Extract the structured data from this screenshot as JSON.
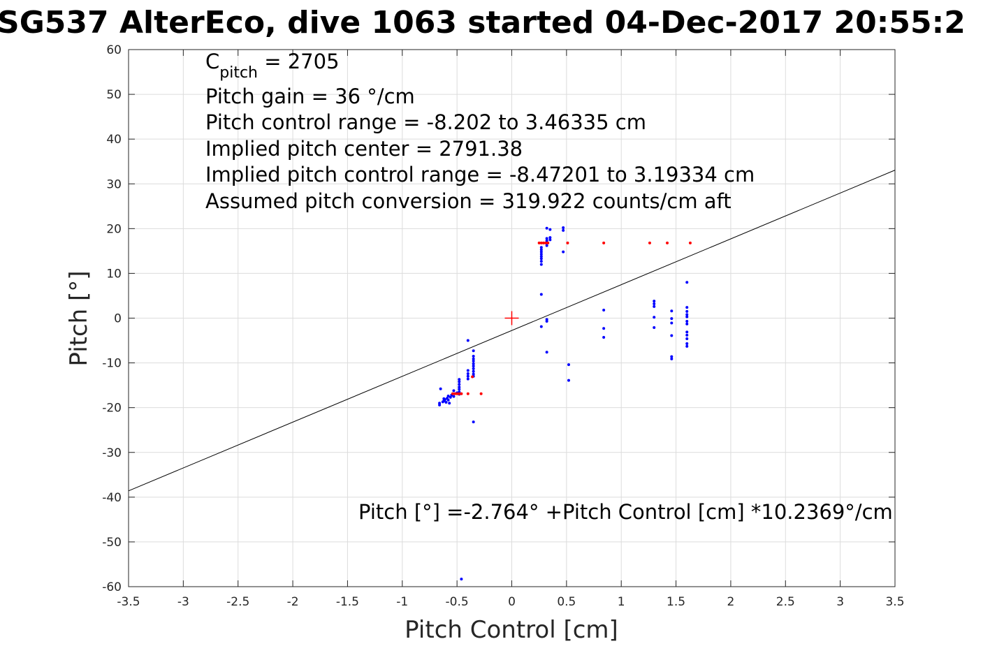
{
  "chart_data": {
    "type": "scatter",
    "title": "SG537 AlterEco, dive 1063 started 04-Dec-2017 20:55:2",
    "xlabel": "Pitch Control [cm]",
    "ylabel": "Pitch [°]",
    "xlim": [
      -3.5,
      3.5
    ],
    "ylim": [
      -60,
      60
    ],
    "xticks": [
      -3.5,
      -3,
      -2.5,
      -2,
      -1.5,
      -1,
      -0.5,
      0,
      0.5,
      1,
      1.5,
      2,
      2.5,
      3,
      3.5
    ],
    "xtick_labels": [
      "-3.5",
      "-3",
      "-2.5",
      "-2",
      "-1.5",
      "-1",
      "-0.5",
      "0",
      "0.5",
      "1",
      "1.5",
      "2",
      "2.5",
      "3",
      "3.5"
    ],
    "yticks": [
      60,
      50,
      40,
      30,
      20,
      10,
      0,
      -10,
      -20,
      -30,
      -40,
      -50,
      -60
    ],
    "ytick_labels": [
      "60",
      "50",
      "40",
      "30",
      "20",
      "10",
      "0",
      "-10",
      "-20",
      "-30",
      "-40",
      "-50",
      "-60"
    ],
    "grid": true,
    "fit_line": {
      "intercept": -2.764,
      "slope": 10.2369,
      "color": "#000000"
    },
    "center_marker": {
      "x": 0,
      "y": 0,
      "color": "#ff0000"
    },
    "annotations": {
      "c_pitch_symbol": "C",
      "c_pitch_subscript": "pitch",
      "c_pitch_value": " = 2705",
      "lines": [
        "Pitch gain = 36 °/cm",
        "Pitch control range = -8.202 to 3.46335 cm",
        "Implied pitch center = 2791.38",
        "Implied pitch control range = -8.47201 to 3.19334 cm",
        "Assumed pitch conversion = 319.922 counts/cm aft"
      ],
      "fit_equation": "Pitch [°] =-2.764° +Pitch Control [cm] *10.2369°/cm"
    },
    "series": [
      {
        "color": "#0000ff",
        "points": [
          [
            -0.65,
            -15.8
          ],
          [
            -0.66,
            -19.0
          ],
          [
            -0.66,
            -19.4
          ],
          [
            -0.63,
            -18.7
          ],
          [
            -0.62,
            -18.0
          ],
          [
            -0.62,
            -18.5
          ],
          [
            -0.61,
            -18.2
          ],
          [
            -0.6,
            -18.8
          ],
          [
            -0.59,
            -17.9
          ],
          [
            -0.58,
            -18.3
          ],
          [
            -0.58,
            -17.4
          ],
          [
            -0.57,
            -19.0
          ],
          [
            -0.56,
            -17.7
          ],
          [
            -0.55,
            -17.2
          ],
          [
            -0.53,
            -16.2
          ],
          [
            -0.53,
            -17.5
          ],
          [
            -0.5,
            -16.7
          ],
          [
            -0.48,
            -17.0
          ],
          [
            -0.48,
            -16.5
          ],
          [
            -0.48,
            -15.9
          ],
          [
            -0.48,
            -15.4
          ],
          [
            -0.48,
            -14.8
          ],
          [
            -0.48,
            -14.2
          ],
          [
            -0.48,
            -13.7
          ],
          [
            -0.46,
            -58.3
          ],
          [
            -0.4,
            -5.0
          ],
          [
            -0.4,
            -11.7
          ],
          [
            -0.4,
            -12.4
          ],
          [
            -0.4,
            -13.0
          ],
          [
            -0.4,
            -13.6
          ],
          [
            -0.35,
            -7.3
          ],
          [
            -0.35,
            -8.5
          ],
          [
            -0.35,
            -9.1
          ],
          [
            -0.35,
            -9.6
          ],
          [
            -0.35,
            -10.2
          ],
          [
            -0.35,
            -10.7
          ],
          [
            -0.35,
            -11.3
          ],
          [
            -0.35,
            -11.9
          ],
          [
            -0.35,
            -12.5
          ],
          [
            -0.35,
            -13.0
          ],
          [
            -0.35,
            -23.2
          ],
          [
            0.27,
            12.0
          ],
          [
            0.27,
            12.7
          ],
          [
            0.27,
            13.3
          ],
          [
            0.27,
            13.8
          ],
          [
            0.27,
            14.3
          ],
          [
            0.27,
            14.8
          ],
          [
            0.27,
            15.3
          ],
          [
            0.27,
            15.8
          ],
          [
            0.27,
            5.3
          ],
          [
            0.27,
            -1.9
          ],
          [
            0.32,
            20.1
          ],
          [
            0.32,
            17.8
          ],
          [
            0.32,
            17.3
          ],
          [
            0.32,
            16.8
          ],
          [
            0.32,
            16.2
          ],
          [
            0.32,
            -0.3
          ],
          [
            0.32,
            -0.7
          ],
          [
            0.32,
            -7.6
          ],
          [
            0.35,
            19.8
          ],
          [
            0.35,
            18.0
          ],
          [
            0.35,
            17.5
          ],
          [
            0.47,
            20.2
          ],
          [
            0.47,
            19.6
          ],
          [
            0.47,
            14.8
          ],
          [
            0.52,
            -10.4
          ],
          [
            0.52,
            -13.9
          ],
          [
            0.84,
            1.8
          ],
          [
            0.84,
            -2.3
          ],
          [
            0.84,
            -4.3
          ],
          [
            1.3,
            3.8
          ],
          [
            1.3,
            3.2
          ],
          [
            1.3,
            2.6
          ],
          [
            1.3,
            0.2
          ],
          [
            1.3,
            -2.1
          ],
          [
            1.46,
            1.6
          ],
          [
            1.46,
            -0.1
          ],
          [
            1.46,
            -1.1
          ],
          [
            1.46,
            -3.9
          ],
          [
            1.46,
            -8.6
          ],
          [
            1.46,
            -9.1
          ],
          [
            1.6,
            8.0
          ],
          [
            1.6,
            2.4
          ],
          [
            1.6,
            1.5
          ],
          [
            1.6,
            0.8
          ],
          [
            1.6,
            0.3
          ],
          [
            1.6,
            -0.7
          ],
          [
            1.6,
            -1.3
          ],
          [
            1.6,
            -3.1
          ],
          [
            1.6,
            -3.8
          ],
          [
            1.6,
            -4.6
          ],
          [
            1.6,
            -5.7
          ],
          [
            1.6,
            -6.3
          ]
        ]
      },
      {
        "color": "#ff0000",
        "points": [
          [
            -0.54,
            -16.9
          ],
          [
            -0.52,
            -16.9
          ],
          [
            -0.5,
            -16.9
          ],
          [
            -0.48,
            -16.9
          ],
          [
            -0.46,
            -16.9
          ],
          [
            -0.4,
            -16.9
          ],
          [
            -0.28,
            -16.9
          ],
          [
            -0.36,
            -13.1
          ],
          [
            0.25,
            16.8
          ],
          [
            0.27,
            16.8
          ],
          [
            0.29,
            16.8
          ],
          [
            0.31,
            16.8
          ],
          [
            0.33,
            16.8
          ],
          [
            0.51,
            16.8
          ],
          [
            0.84,
            16.8
          ],
          [
            1.26,
            16.8
          ],
          [
            1.42,
            16.8
          ],
          [
            1.63,
            16.8
          ]
        ]
      }
    ]
  }
}
